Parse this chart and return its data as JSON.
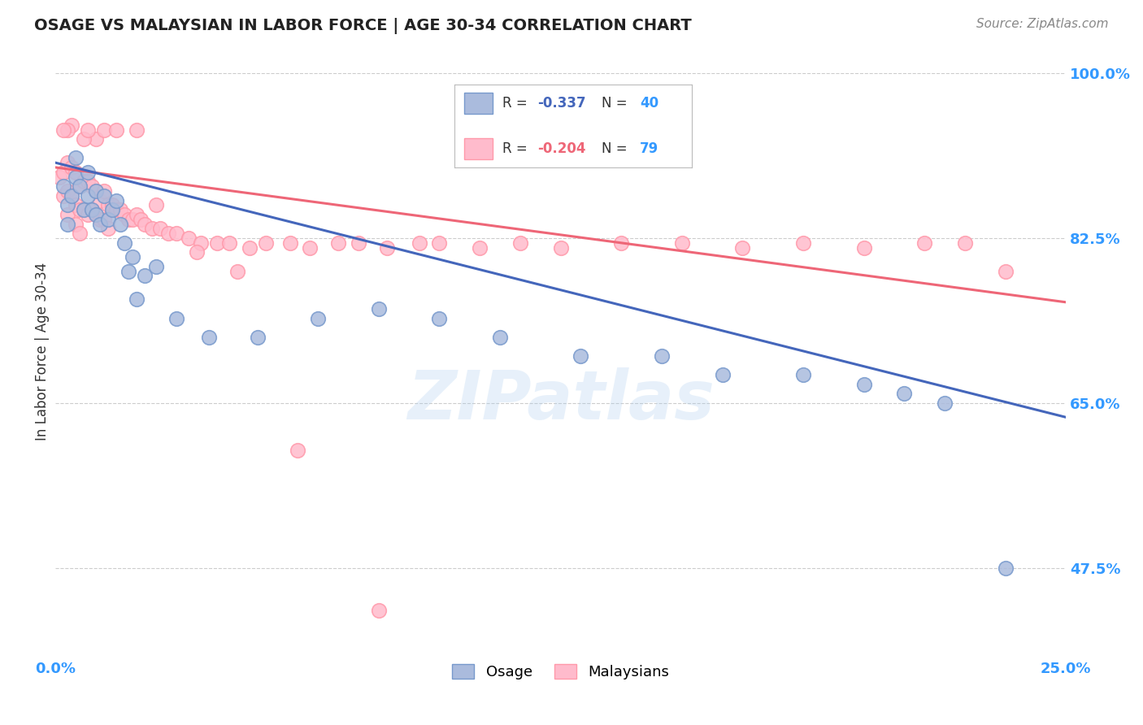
{
  "title": "OSAGE VS MALAYSIAN IN LABOR FORCE | AGE 30-34 CORRELATION CHART",
  "source": "Source: ZipAtlas.com",
  "ylabel": "In Labor Force | Age 30-34",
  "xlim": [
    0.0,
    0.25
  ],
  "ylim": [
    0.38,
    1.03
  ],
  "ytick_vals": [
    0.475,
    0.65,
    0.825,
    1.0
  ],
  "ytick_labels": [
    "47.5%",
    "65.0%",
    "82.5%",
    "100.0%"
  ],
  "osage_R": -0.337,
  "osage_N": 40,
  "malaysian_R": -0.204,
  "malaysian_N": 79,
  "blue_fill": "#AABBDD",
  "blue_edge": "#7799CC",
  "pink_fill": "#FFBBCC",
  "pink_edge": "#FF99AA",
  "blue_line_color": "#4466BB",
  "pink_line_color": "#EE6677",
  "background_color": "#FFFFFF",
  "watermark": "ZIPatlas",
  "osage_trend_x0": 0.0,
  "osage_trend_y0": 0.905,
  "osage_trend_x1": 0.25,
  "osage_trend_y1": 0.635,
  "malay_trend_x0": 0.0,
  "malay_trend_y0": 0.9,
  "malay_trend_x1": 0.25,
  "malay_trend_y1": 0.757,
  "osage_x": [
    0.002,
    0.003,
    0.003,
    0.004,
    0.005,
    0.005,
    0.006,
    0.007,
    0.008,
    0.008,
    0.009,
    0.01,
    0.01,
    0.011,
    0.012,
    0.013,
    0.014,
    0.015,
    0.016,
    0.017,
    0.018,
    0.019,
    0.02,
    0.022,
    0.025,
    0.03,
    0.038,
    0.05,
    0.065,
    0.08,
    0.095,
    0.11,
    0.13,
    0.15,
    0.165,
    0.185,
    0.2,
    0.21,
    0.22,
    0.235
  ],
  "osage_y": [
    0.88,
    0.86,
    0.84,
    0.87,
    0.89,
    0.91,
    0.88,
    0.855,
    0.895,
    0.87,
    0.855,
    0.875,
    0.85,
    0.84,
    0.87,
    0.845,
    0.855,
    0.865,
    0.84,
    0.82,
    0.79,
    0.805,
    0.76,
    0.785,
    0.795,
    0.74,
    0.72,
    0.72,
    0.74,
    0.75,
    0.74,
    0.72,
    0.7,
    0.7,
    0.68,
    0.68,
    0.67,
    0.66,
    0.65,
    0.475
  ],
  "malay_x": [
    0.001,
    0.002,
    0.002,
    0.003,
    0.003,
    0.003,
    0.004,
    0.004,
    0.005,
    0.005,
    0.005,
    0.006,
    0.006,
    0.006,
    0.007,
    0.007,
    0.008,
    0.008,
    0.009,
    0.009,
    0.01,
    0.01,
    0.011,
    0.011,
    0.012,
    0.012,
    0.013,
    0.013,
    0.014,
    0.015,
    0.016,
    0.017,
    0.018,
    0.019,
    0.02,
    0.021,
    0.022,
    0.024,
    0.026,
    0.028,
    0.03,
    0.033,
    0.036,
    0.04,
    0.043,
    0.048,
    0.052,
    0.058,
    0.063,
    0.07,
    0.075,
    0.082,
    0.09,
    0.095,
    0.105,
    0.115,
    0.125,
    0.14,
    0.155,
    0.17,
    0.185,
    0.2,
    0.215,
    0.225,
    0.235,
    0.01,
    0.007,
    0.004,
    0.003,
    0.002,
    0.008,
    0.012,
    0.015,
    0.02,
    0.025,
    0.035,
    0.045,
    0.06,
    0.08
  ],
  "malay_y": [
    0.89,
    0.895,
    0.87,
    0.905,
    0.875,
    0.85,
    0.9,
    0.87,
    0.895,
    0.86,
    0.84,
    0.88,
    0.855,
    0.83,
    0.885,
    0.855,
    0.885,
    0.85,
    0.88,
    0.855,
    0.875,
    0.85,
    0.865,
    0.845,
    0.875,
    0.845,
    0.86,
    0.835,
    0.86,
    0.855,
    0.855,
    0.85,
    0.845,
    0.845,
    0.85,
    0.845,
    0.84,
    0.835,
    0.835,
    0.83,
    0.83,
    0.825,
    0.82,
    0.82,
    0.82,
    0.815,
    0.82,
    0.82,
    0.815,
    0.82,
    0.82,
    0.815,
    0.82,
    0.82,
    0.815,
    0.82,
    0.815,
    0.82,
    0.82,
    0.815,
    0.82,
    0.815,
    0.82,
    0.82,
    0.79,
    0.93,
    0.93,
    0.945,
    0.94,
    0.94,
    0.94,
    0.94,
    0.94,
    0.94,
    0.86,
    0.81,
    0.79,
    0.6,
    0.43
  ]
}
